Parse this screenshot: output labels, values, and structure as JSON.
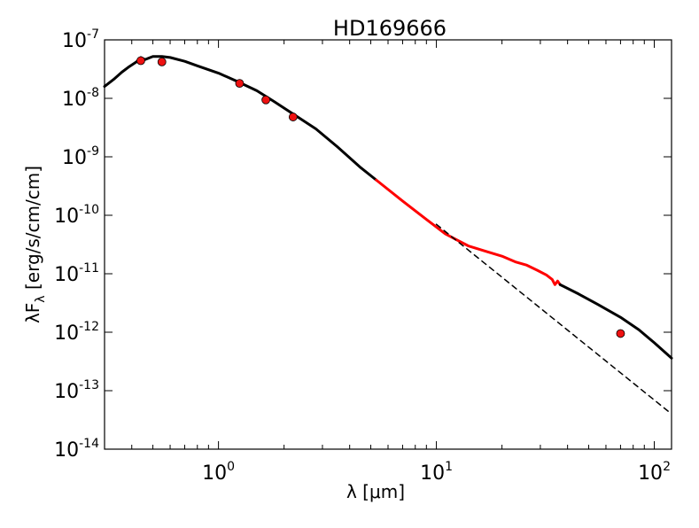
{
  "chart_data": {
    "type": "line",
    "title": "HD169666",
    "xlabel": "λ [μm]",
    "ylabel": "λF_λ [erg/s/cm/cm]",
    "xscale": "log",
    "yscale": "log",
    "xlim": [
      0.3,
      120
    ],
    "ylim": [
      1e-14,
      1e-07
    ],
    "grid": false,
    "x_tick_labels": [
      {
        "value": 1,
        "base": "10",
        "exp": "0"
      },
      {
        "value": 10,
        "base": "10",
        "exp": "1"
      },
      {
        "value": 100,
        "base": "10",
        "exp": "2"
      }
    ],
    "y_tick_labels": [
      {
        "value": 1e-07,
        "base": "10",
        "exp": "-7"
      },
      {
        "value": 1e-08,
        "base": "10",
        "exp": "-8"
      },
      {
        "value": 1e-09,
        "base": "10",
        "exp": "-9"
      },
      {
        "value": 1e-10,
        "base": "10",
        "exp": "-10"
      },
      {
        "value": 1e-11,
        "base": "10",
        "exp": "-11"
      },
      {
        "value": 1e-12,
        "base": "10",
        "exp": "-12"
      },
      {
        "value": 1e-13,
        "base": "10",
        "exp": "-13"
      },
      {
        "value": 1e-14,
        "base": "10",
        "exp": "-14"
      }
    ],
    "series": [
      {
        "style": "solid",
        "color": "#000000",
        "x": [
          0.3,
          0.33,
          0.36,
          0.39,
          0.42,
          0.44,
          0.46,
          0.5,
          0.55,
          0.6,
          0.7,
          0.8,
          1.0,
          1.2,
          1.5,
          1.8,
          2.2,
          2.8,
          3.5,
          4.5,
          5.3
        ],
        "y": [
          1.6e-08,
          2.1e-08,
          2.8e-08,
          3.5e-08,
          4.2e-08,
          5e-08,
          4.6e-08,
          5.2e-08,
          5.2e-08,
          5e-08,
          4.3e-08,
          3.6e-08,
          2.7e-08,
          2e-08,
          1.35e-08,
          8.8e-09,
          5.4e-09,
          3e-09,
          1.5e-09,
          6.5e-10,
          4e-10
        ]
      },
      {
        "style": "solid",
        "color": "#ff0000",
        "x": [
          5.3,
          7,
          9,
          11,
          14,
          17,
          20,
          23,
          26,
          29,
          32,
          34,
          35,
          36,
          37
        ],
        "y": [
          4e-10,
          1.75e-10,
          8.5e-11,
          4.8e-11,
          3e-11,
          2.4e-11,
          2e-11,
          1.6e-11,
          1.4e-11,
          1.15e-11,
          9.5e-12,
          8e-12,
          6.5e-12,
          7.5e-12,
          6.5e-12
        ]
      },
      {
        "style": "solid",
        "color": "#000000",
        "x": [
          37,
          45,
          55,
          70,
          85,
          100,
          120
        ],
        "y": [
          6.5e-12,
          4.5e-12,
          3e-12,
          1.8e-12,
          1.1e-12,
          6.6e-13,
          3.6e-13
        ]
      },
      {
        "style": "dashed",
        "color": "#000000",
        "x": [
          10,
          120
        ],
        "y": [
          7e-11,
          4e-14
        ]
      }
    ],
    "points": {
      "color": "#ee1111",
      "x": [
        0.44,
        0.55,
        1.25,
        1.65,
        2.2,
        70
      ],
      "y": [
        4.4e-08,
        4.2e-08,
        1.8e-08,
        9.4e-09,
        4.8e-09,
        9.5e-13
      ]
    }
  }
}
